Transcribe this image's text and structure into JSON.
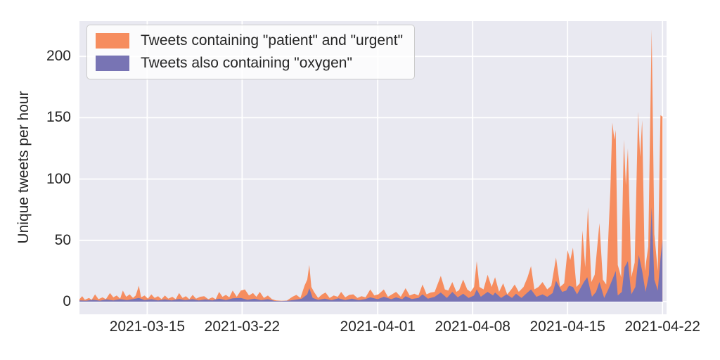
{
  "figure": {
    "background": "#ffffff",
    "plot_background": "#e9e9f1",
    "grid_color": "#ffffff",
    "text_color": "#262626"
  },
  "chart_data": {
    "type": "area",
    "title": "",
    "xlabel": "",
    "ylabel": "Unique tweets per hour",
    "grid": true,
    "legend_position": "upper left",
    "x_start_date": "2021-03-10",
    "x_unit": "days since 2021-03-10 (hourly tweet counts)",
    "x_domain_days": [
      0,
      43.3
    ],
    "ylim": [
      -10.3,
      228.8
    ],
    "y_ticks": [
      0,
      50,
      100,
      150,
      200
    ],
    "x_ticks": [
      {
        "label": "2021-03-15",
        "day": 5
      },
      {
        "label": "2021-03-22",
        "day": 12
      },
      {
        "label": "2021-04-01",
        "day": 22
      },
      {
        "label": "2021-04-08",
        "day": 29
      },
      {
        "label": "2021-04-15",
        "day": 36
      },
      {
        "label": "2021-04-22",
        "day": 43
      }
    ],
    "series": [
      {
        "name": "Tweets containing \"patient\" and \"urgent\"",
        "color": "#f68d5f",
        "points": [
          [
            0,
            2
          ],
          [
            0.2,
            4.5
          ],
          [
            0.4,
            1.5
          ],
          [
            0.7,
            3
          ],
          [
            0.9,
            1.5
          ],
          [
            1.15,
            6
          ],
          [
            1.4,
            2
          ],
          [
            1.7,
            3.5
          ],
          [
            1.95,
            2
          ],
          [
            2.25,
            7
          ],
          [
            2.5,
            3.5
          ],
          [
            2.75,
            5
          ],
          [
            3.0,
            2.5
          ],
          [
            3.2,
            9
          ],
          [
            3.45,
            4
          ],
          [
            3.7,
            6
          ],
          [
            3.95,
            3
          ],
          [
            4.15,
            5
          ],
          [
            4.38,
            13
          ],
          [
            4.55,
            3.5
          ],
          [
            4.8,
            5
          ],
          [
            5.05,
            2.5
          ],
          [
            5.3,
            6
          ],
          [
            5.55,
            3
          ],
          [
            5.8,
            4.5
          ],
          [
            6.05,
            2
          ],
          [
            6.3,
            5
          ],
          [
            6.55,
            2.5
          ],
          [
            6.85,
            4
          ],
          [
            7.1,
            2
          ],
          [
            7.35,
            7
          ],
          [
            7.6,
            3
          ],
          [
            7.85,
            4.5
          ],
          [
            8.1,
            2
          ],
          [
            8.35,
            5.5
          ],
          [
            8.6,
            2.5
          ],
          [
            8.9,
            4
          ],
          [
            9.2,
            4.5
          ],
          [
            9.5,
            2
          ],
          [
            9.8,
            3.5
          ],
          [
            10.05,
            2
          ],
          [
            10.3,
            8
          ],
          [
            10.55,
            4
          ],
          [
            10.8,
            5.5
          ],
          [
            11.05,
            3.5
          ],
          [
            11.3,
            9
          ],
          [
            11.6,
            4
          ],
          [
            11.9,
            9
          ],
          [
            12.2,
            10
          ],
          [
            12.5,
            5
          ],
          [
            12.8,
            7
          ],
          [
            13.05,
            4
          ],
          [
            13.3,
            8
          ],
          [
            13.6,
            3
          ],
          [
            13.9,
            5
          ],
          [
            14.2,
            2
          ],
          [
            14.5,
            1
          ],
          [
            14.9,
            0.7
          ],
          [
            15.3,
            0.9
          ],
          [
            15.7,
            4
          ],
          [
            16.0,
            5.5
          ],
          [
            16.3,
            3
          ],
          [
            16.6,
            13
          ],
          [
            16.8,
            18
          ],
          [
            16.95,
            30
          ],
          [
            17.1,
            12
          ],
          [
            17.3,
            8
          ],
          [
            17.6,
            3
          ],
          [
            17.9,
            6
          ],
          [
            18.15,
            7.5
          ],
          [
            18.45,
            3
          ],
          [
            18.75,
            5
          ],
          [
            19.05,
            4
          ],
          [
            19.3,
            8
          ],
          [
            19.6,
            3.5
          ],
          [
            19.9,
            5.5
          ],
          [
            20.2,
            6
          ],
          [
            20.5,
            3
          ],
          [
            20.8,
            4.5
          ],
          [
            21.1,
            3.5
          ],
          [
            21.45,
            10
          ],
          [
            21.75,
            5
          ],
          [
            22.05,
            6
          ],
          [
            22.45,
            10
          ],
          [
            22.75,
            4
          ],
          [
            23.05,
            6
          ],
          [
            23.35,
            8
          ],
          [
            23.7,
            4
          ],
          [
            24.05,
            11
          ],
          [
            24.35,
            5
          ],
          [
            24.7,
            6.5
          ],
          [
            25.0,
            5
          ],
          [
            25.3,
            14
          ],
          [
            25.6,
            6
          ],
          [
            25.9,
            7.5
          ],
          [
            26.2,
            8
          ],
          [
            26.65,
            21
          ],
          [
            26.95,
            10
          ],
          [
            27.2,
            9
          ],
          [
            27.5,
            16
          ],
          [
            27.8,
            8
          ],
          [
            28.0,
            9.5
          ],
          [
            28.3,
            18
          ],
          [
            28.6,
            10
          ],
          [
            28.85,
            8
          ],
          [
            29.1,
            12
          ],
          [
            29.3,
            33
          ],
          [
            29.5,
            12
          ],
          [
            29.8,
            10
          ],
          [
            30.1,
            22
          ],
          [
            30.4,
            12
          ],
          [
            30.65,
            20
          ],
          [
            30.95,
            8
          ],
          [
            31.25,
            15
          ],
          [
            31.55,
            6
          ],
          [
            31.85,
            10
          ],
          [
            32.1,
            14
          ],
          [
            32.4,
            8
          ],
          [
            32.75,
            12
          ],
          [
            33.05,
            20
          ],
          [
            33.3,
            29
          ],
          [
            33.55,
            10
          ],
          [
            33.85,
            12
          ],
          [
            34.15,
            16
          ],
          [
            34.5,
            10
          ],
          [
            34.8,
            13
          ],
          [
            35.15,
            36
          ],
          [
            35.45,
            12
          ],
          [
            35.75,
            15
          ],
          [
            36.0,
            42
          ],
          [
            36.2,
            34
          ],
          [
            36.4,
            44
          ],
          [
            36.65,
            12
          ],
          [
            36.9,
            15
          ],
          [
            37.1,
            58
          ],
          [
            37.3,
            28
          ],
          [
            37.5,
            77
          ],
          [
            37.75,
            16
          ],
          [
            38.0,
            22
          ],
          [
            38.35,
            64
          ],
          [
            38.6,
            18
          ],
          [
            38.85,
            14
          ],
          [
            39.15,
            90
          ],
          [
            39.3,
            146
          ],
          [
            39.45,
            132
          ],
          [
            39.55,
            140
          ],
          [
            39.7,
            30
          ],
          [
            39.95,
            20
          ],
          [
            40.15,
            132
          ],
          [
            40.3,
            95
          ],
          [
            40.45,
            125
          ],
          [
            40.7,
            20
          ],
          [
            40.95,
            32
          ],
          [
            41.2,
            155
          ],
          [
            41.35,
            118
          ],
          [
            41.5,
            148
          ],
          [
            41.7,
            25
          ],
          [
            41.95,
            45
          ],
          [
            42.2,
            222
          ],
          [
            42.4,
            55
          ],
          [
            42.65,
            25
          ],
          [
            42.85,
            152
          ],
          [
            43.0,
            151
          ]
        ]
      },
      {
        "name": "Tweets also containing \"oxygen\"",
        "color": "#7874b4",
        "points": [
          [
            0,
            1
          ],
          [
            0.5,
            0.8
          ],
          [
            1.0,
            1.6
          ],
          [
            1.5,
            0.8
          ],
          [
            2.0,
            1.8
          ],
          [
            2.5,
            1
          ],
          [
            3.0,
            2
          ],
          [
            3.5,
            1.2
          ],
          [
            4.0,
            2.2
          ],
          [
            4.38,
            3
          ],
          [
            4.8,
            1.2
          ],
          [
            5.3,
            2
          ],
          [
            5.8,
            1
          ],
          [
            6.3,
            1.8
          ],
          [
            6.8,
            1
          ],
          [
            7.35,
            2.2
          ],
          [
            7.8,
            1.2
          ],
          [
            8.35,
            2
          ],
          [
            8.8,
            1
          ],
          [
            9.3,
            1.8
          ],
          [
            9.8,
            1
          ],
          [
            10.3,
            2.5
          ],
          [
            10.8,
            1.2
          ],
          [
            11.3,
            2.8
          ],
          [
            11.9,
            3
          ],
          [
            12.4,
            1.5
          ],
          [
            12.9,
            2.5
          ],
          [
            13.4,
            1.2
          ],
          [
            13.9,
            2
          ],
          [
            14.4,
            0.6
          ],
          [
            14.9,
            0.4
          ],
          [
            15.4,
            0.8
          ],
          [
            15.9,
            1.5
          ],
          [
            16.4,
            2.5
          ],
          [
            16.8,
            6
          ],
          [
            16.95,
            11
          ],
          [
            17.2,
            3
          ],
          [
            17.6,
            1.5
          ],
          [
            18.1,
            2.5
          ],
          [
            18.6,
            1.2
          ],
          [
            19.1,
            2.8
          ],
          [
            19.6,
            1.3
          ],
          [
            20.1,
            2.5
          ],
          [
            20.6,
            1.2
          ],
          [
            21.1,
            2.2
          ],
          [
            21.45,
            3.5
          ],
          [
            22.0,
            2
          ],
          [
            22.45,
            4
          ],
          [
            23.0,
            2
          ],
          [
            23.35,
            3.5
          ],
          [
            23.8,
            2
          ],
          [
            24.05,
            4.5
          ],
          [
            24.5,
            2.2
          ],
          [
            25.0,
            3
          ],
          [
            25.3,
            6
          ],
          [
            25.7,
            2.5
          ],
          [
            26.2,
            4
          ],
          [
            26.65,
            7.5
          ],
          [
            27.1,
            3
          ],
          [
            27.5,
            8
          ],
          [
            27.9,
            3.5
          ],
          [
            28.3,
            6.5
          ],
          [
            28.7,
            3
          ],
          [
            29.1,
            5
          ],
          [
            29.3,
            10
          ],
          [
            29.6,
            4
          ],
          [
            30.1,
            8
          ],
          [
            30.5,
            5
          ],
          [
            30.65,
            7.5
          ],
          [
            31.1,
            3
          ],
          [
            31.5,
            6
          ],
          [
            31.9,
            3
          ],
          [
            32.2,
            6.5
          ],
          [
            32.6,
            3
          ],
          [
            33.0,
            7
          ],
          [
            33.3,
            10
          ],
          [
            33.7,
            4
          ],
          [
            34.15,
            6
          ],
          [
            34.5,
            4
          ],
          [
            34.9,
            7
          ],
          [
            35.15,
            17
          ],
          [
            35.6,
            8
          ],
          [
            35.9,
            9
          ],
          [
            36.1,
            13
          ],
          [
            36.4,
            12
          ],
          [
            36.7,
            6
          ],
          [
            37.0,
            12
          ],
          [
            37.2,
            16
          ],
          [
            37.45,
            20
          ],
          [
            37.8,
            4
          ],
          [
            38.1,
            8
          ],
          [
            38.35,
            16
          ],
          [
            38.7,
            3
          ],
          [
            39.0,
            10
          ],
          [
            39.3,
            18
          ],
          [
            39.55,
            25
          ],
          [
            39.7,
            5
          ],
          [
            40.0,
            8
          ],
          [
            40.2,
            28
          ],
          [
            40.45,
            33
          ],
          [
            40.7,
            6
          ],
          [
            41.0,
            12
          ],
          [
            41.25,
            38
          ],
          [
            41.5,
            25
          ],
          [
            41.75,
            8
          ],
          [
            42.0,
            22
          ],
          [
            42.2,
            77
          ],
          [
            42.4,
            18
          ],
          [
            42.65,
            9
          ],
          [
            42.85,
            35
          ],
          [
            43.0,
            50
          ]
        ]
      }
    ]
  }
}
